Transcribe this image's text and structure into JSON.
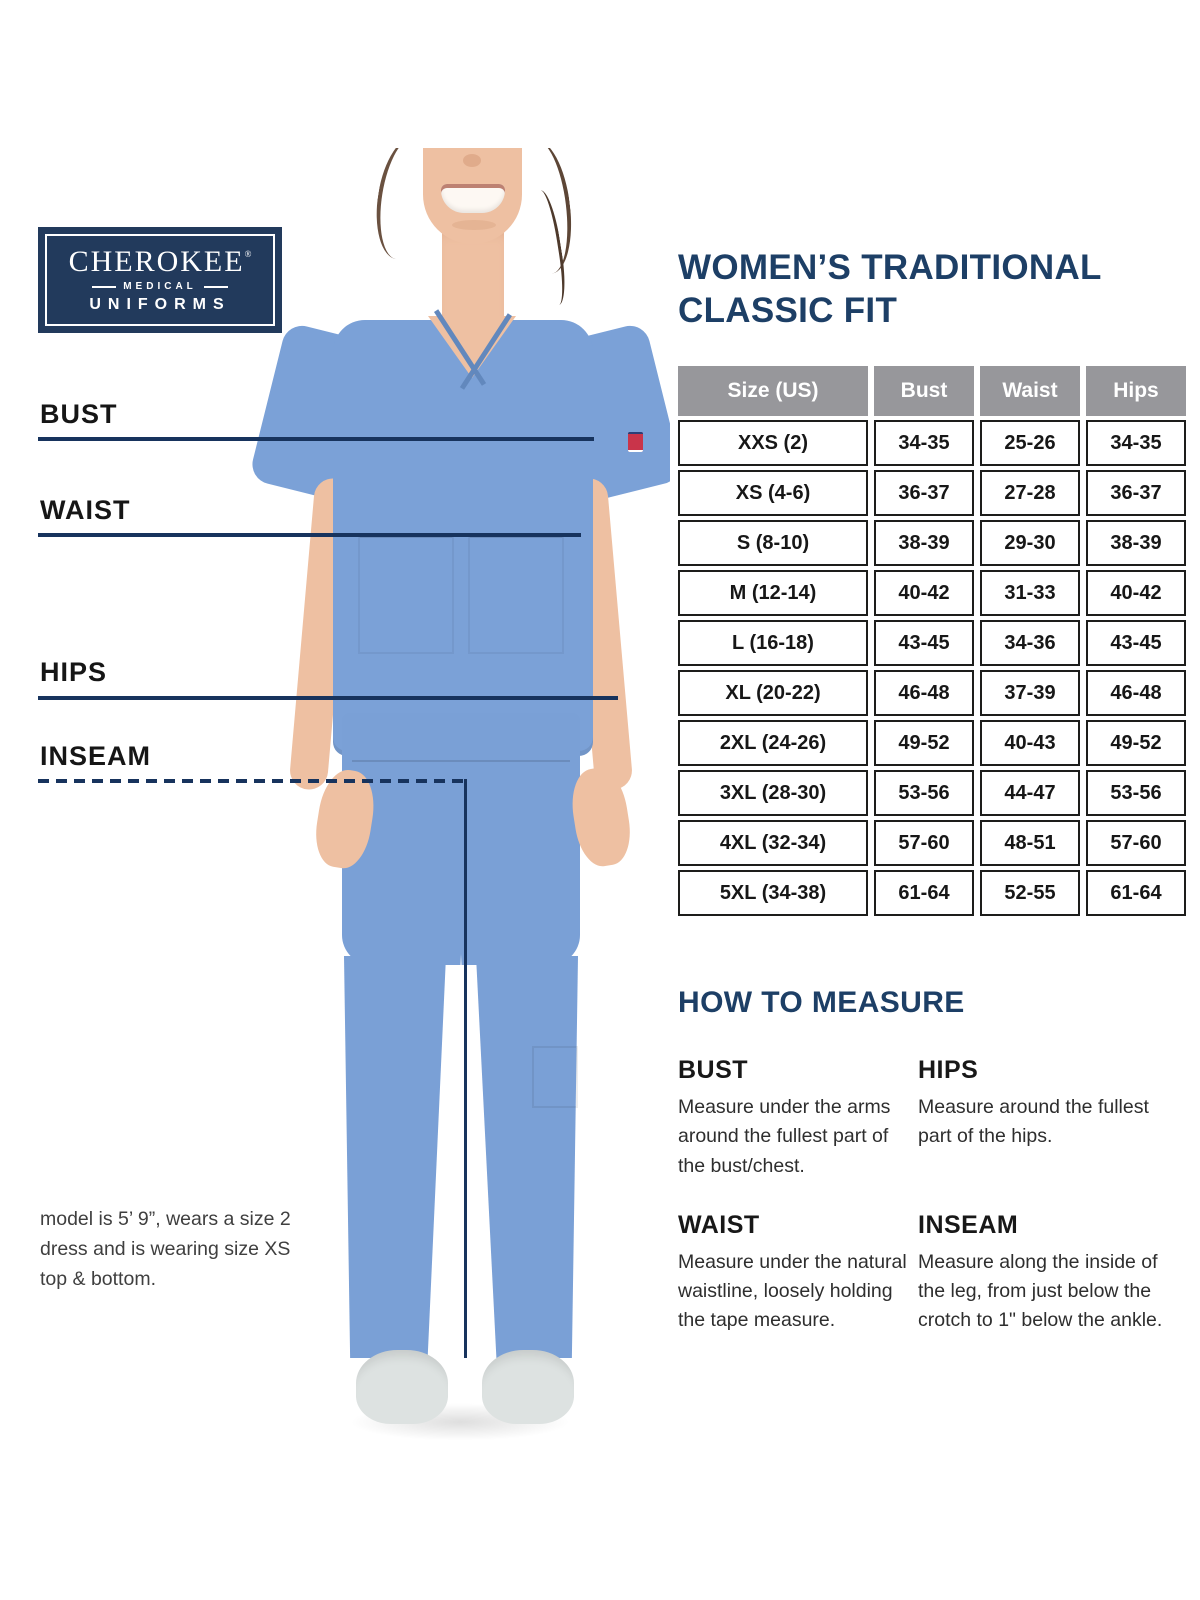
{
  "logo": {
    "name": "CHEROKEE",
    "reg": "®",
    "tagline_top": "MEDICAL",
    "tagline_bottom": "UNIFORMS"
  },
  "title": {
    "line1": "WOMEN’S TRADITIONAL",
    "line2": "CLASSIC FIT"
  },
  "body_labels": {
    "bust": "BUST",
    "waist": "WAIST",
    "hips": "HIPS",
    "inseam": "INSEAM"
  },
  "size_table": {
    "headers": [
      "Size (US)",
      "Bust",
      "Waist",
      "Hips"
    ],
    "rows": [
      [
        "XXS (2)",
        "34-35",
        "25-26",
        "34-35"
      ],
      [
        "XS (4-6)",
        "36-37",
        "27-28",
        "36-37"
      ],
      [
        "S (8-10)",
        "38-39",
        "29-30",
        "38-39"
      ],
      [
        "M (12-14)",
        "40-42",
        "31-33",
        "40-42"
      ],
      [
        "L (16-18)",
        "43-45",
        "34-36",
        "43-45"
      ],
      [
        "XL (20-22)",
        "46-48",
        "37-39",
        "46-48"
      ],
      [
        "2XL (24-26)",
        "49-52",
        "40-43",
        "49-52"
      ],
      [
        "3XL (28-30)",
        "53-56",
        "44-47",
        "53-56"
      ],
      [
        "4XL (32-34)",
        "57-60",
        "48-51",
        "57-60"
      ],
      [
        "5XL (34-38)",
        "61-64",
        "52-55",
        "61-64"
      ]
    ]
  },
  "how_to_measure": {
    "title": "HOW TO MEASURE",
    "sections": [
      {
        "name": "BUST",
        "text": "Measure under the arms around the fullest part of the bust/chest."
      },
      {
        "name": "HIPS",
        "text": "Measure around the fullest part of the hips."
      },
      {
        "name": "WAIST",
        "text": "Measure under the natural waistline, loosely holding the tape measure."
      },
      {
        "name": "INSEAM",
        "text": "Measure along the inside of the leg, from just below the crotch to 1\" below the ankle."
      }
    ]
  },
  "model_note": "model is 5’ 9”, wears a size 2 dress and is wearing size XS top & bottom.",
  "colors": {
    "brand_navy": "#223a5c",
    "title_navy": "#1d3f66",
    "guide_line_navy": "#17335d",
    "table_header_gray": "#97979b",
    "scrub_blue": "#7ba1d7",
    "logo_patch_red": "#c9344a"
  }
}
